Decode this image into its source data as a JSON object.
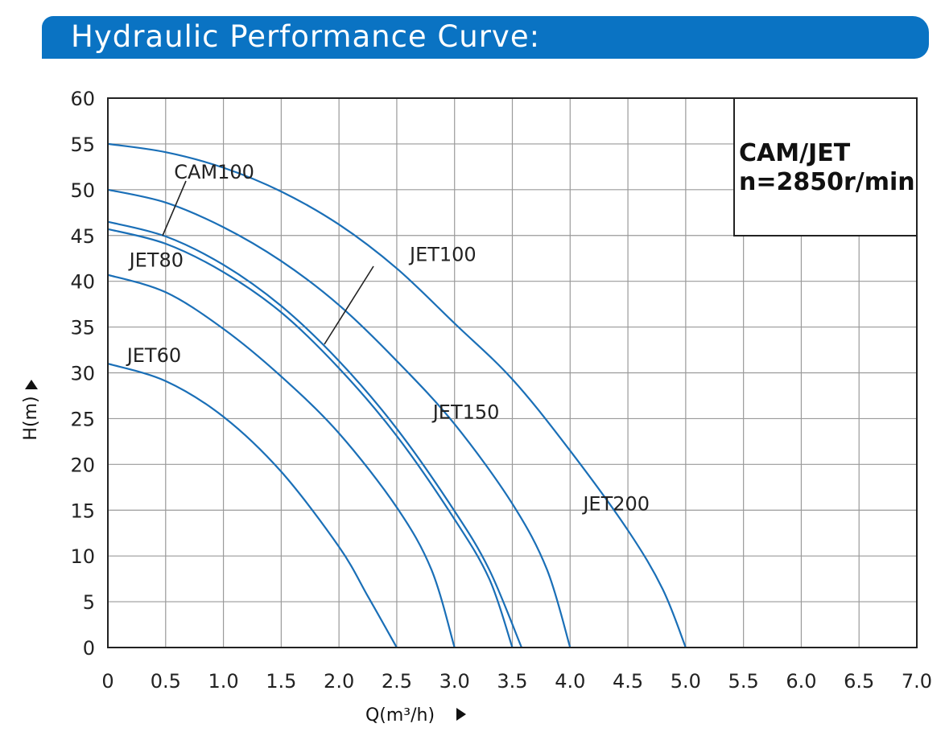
{
  "header": {
    "title": "Hydraulic Performance Curve:"
  },
  "colors": {
    "banner": "#0a73c3",
    "curve": "#1a6fb7",
    "grid": "#9a9a9a",
    "frame": "#222222"
  },
  "info_box": {
    "line1": "CAM/JET",
    "line2": "n=2850r/min"
  },
  "chart_data": {
    "type": "line",
    "xlabel": "Q(m³/h)",
    "ylabel": "H(m)",
    "xlim": [
      0,
      7.0
    ],
    "ylim": [
      0,
      60
    ],
    "x_ticks": [
      "0",
      "0.5",
      "1.0",
      "1.5",
      "2.0",
      "2.5",
      "3.0",
      "3.5",
      "4.0",
      "4.5",
      "5.0",
      "5.5",
      "6.0",
      "6.5",
      "7.0"
    ],
    "y_ticks": [
      "0",
      "5",
      "10",
      "15",
      "20",
      "25",
      "30",
      "35",
      "40",
      "45",
      "50",
      "55",
      "60"
    ],
    "grid": true,
    "series": [
      {
        "name": "JET60",
        "x": [
          0,
          0.5,
          1.0,
          1.5,
          2.0,
          2.25,
          2.5
        ],
        "y": [
          31,
          29.1,
          25.2,
          19.2,
          11,
          5.6,
          0
        ]
      },
      {
        "name": "JET80",
        "x": [
          0,
          0.5,
          1.0,
          1.5,
          2.0,
          2.5,
          2.8,
          3.0
        ],
        "y": [
          40.7,
          38.8,
          34.8,
          29.6,
          23.4,
          15.3,
          8.5,
          0
        ]
      },
      {
        "name": "CAM100",
        "x": [
          0,
          0.5,
          1.0,
          1.5,
          2.0,
          2.5,
          3.0,
          3.3,
          3.58
        ],
        "y": [
          46.5,
          44.9,
          41.8,
          37.3,
          31.3,
          23.9,
          14.9,
          8.5,
          0
        ]
      },
      {
        "name": "JET100",
        "x": [
          0,
          0.5,
          1.0,
          1.5,
          2.0,
          2.5,
          3.0,
          3.3,
          3.5
        ],
        "y": [
          45.7,
          44.1,
          41.0,
          36.6,
          30.5,
          23.1,
          14,
          7.5,
          0
        ]
      },
      {
        "name": "JET150",
        "x": [
          0,
          0.5,
          1.0,
          1.5,
          2.0,
          2.5,
          3.0,
          3.5,
          3.8,
          4.0
        ],
        "y": [
          50,
          48.6,
          45.9,
          42.2,
          37.4,
          31.3,
          24.4,
          15.7,
          8.5,
          0
        ]
      },
      {
        "name": "JET200",
        "x": [
          0,
          0.5,
          1.0,
          1.5,
          2.0,
          2.5,
          3.0,
          3.5,
          4.0,
          4.5,
          4.8,
          5.0
        ],
        "y": [
          55,
          54.1,
          52.4,
          49.8,
          46.2,
          41.4,
          35.4,
          29.3,
          21.5,
          12.8,
          6.4,
          0
        ]
      }
    ],
    "annotations": [
      {
        "text": "CAM100",
        "x": 0.92,
        "y": 51.2
      },
      {
        "text": "JET80",
        "x": 0.42,
        "y": 41.6
      },
      {
        "text": "JET60",
        "x": 0.4,
        "y": 31.2
      },
      {
        "text": "JET100",
        "x": 2.9,
        "y": 42.2
      },
      {
        "text": "JET150",
        "x": 3.1,
        "y": 25.0
      },
      {
        "text": "JET200",
        "x": 4.4,
        "y": 15.0
      }
    ]
  }
}
